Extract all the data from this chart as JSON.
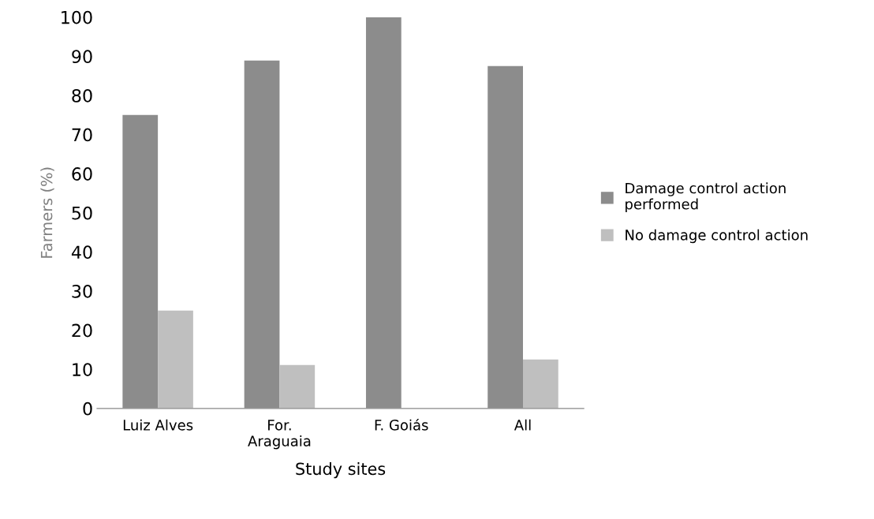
{
  "chart_data": {
    "type": "bar",
    "xlabel": "Study sites",
    "ylabel": "Farmers (%)",
    "categories": [
      "Luiz Alves",
      "For.\nAraguaia",
      "F. Goiás",
      "All"
    ],
    "series": [
      {
        "name": "Damage control action\nperformed",
        "color": "#8c8c8c",
        "values": [
          75,
          88.9,
          100,
          87.5
        ]
      },
      {
        "name": "No damage control action",
        "color": "#bfbfbf",
        "values": [
          25,
          11.1,
          0,
          12.5
        ]
      }
    ],
    "ylim": [
      0,
      100
    ],
    "yticks": [
      0,
      10,
      20,
      30,
      40,
      50,
      60,
      70,
      80,
      90,
      100
    ],
    "grid": false,
    "legend": "right"
  }
}
